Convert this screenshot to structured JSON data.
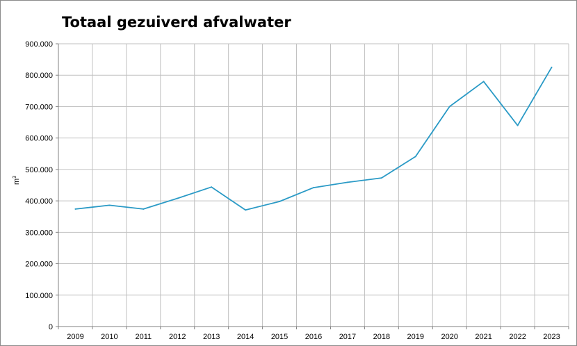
{
  "chart_data": {
    "type": "line",
    "title": "Totaal gezuiverd afvalwater",
    "xlabel": "",
    "ylabel": "m",
    "ylabel_sup": "3",
    "x": [
      "2009",
      "2010",
      "2011",
      "2012",
      "2013",
      "2014",
      "2015",
      "2016",
      "2017",
      "2018",
      "2019",
      "2020",
      "2021",
      "2022",
      "2023"
    ],
    "series": [
      {
        "values": [
          374000,
          386000,
          374000,
          408000,
          444000,
          371000,
          398000,
          442000,
          459000,
          473000,
          541000,
          700000,
          780000,
          640000,
          825000
        ]
      }
    ],
    "ylim": [
      0,
      900000
    ],
    "yticks": [
      0,
      100000,
      200000,
      300000,
      400000,
      500000,
      600000,
      700000,
      800000,
      900000
    ],
    "ytick_labels": [
      "0",
      "100.000",
      "200.000",
      "300.000",
      "400.000",
      "500.000",
      "600.000",
      "700.000",
      "800.000",
      "900.000"
    ],
    "grid": true,
    "colors": {
      "line": "#2a9ac6",
      "grid": "#c0c0c0",
      "axis": "#808080"
    }
  }
}
